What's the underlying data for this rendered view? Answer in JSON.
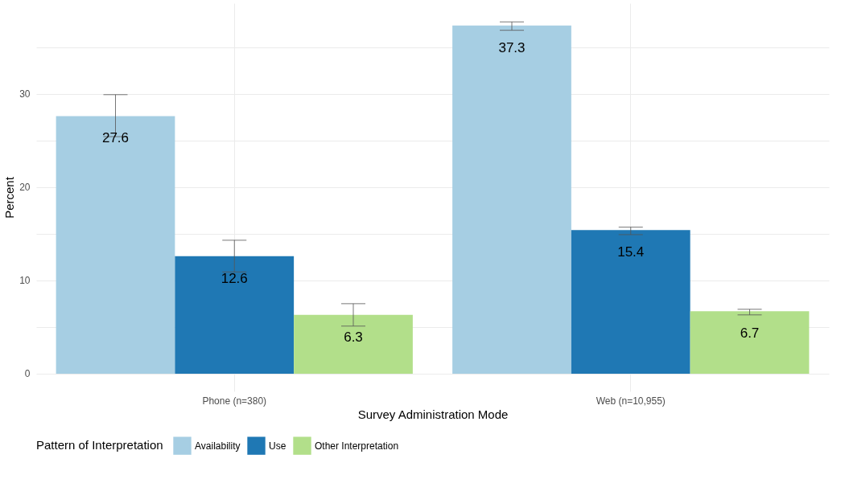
{
  "chart_data": {
    "type": "bar",
    "xlabel": "Survey Administration Mode",
    "ylabel": "Percent",
    "legend_title": "Pattern of Interpretation",
    "categories": [
      "Phone (n=380)",
      "Web (n=10,955)"
    ],
    "series": [
      {
        "name": "Availability",
        "color": "#a6cee3",
        "values": [
          27.6,
          37.3
        ],
        "errors": [
          [
            25.4,
            29.9
          ],
          [
            36.8,
            37.7
          ]
        ]
      },
      {
        "name": "Use",
        "color": "#1f78b4",
        "values": [
          12.6,
          15.4
        ],
        "errors": [
          [
            10.9,
            14.3
          ],
          [
            14.9,
            15.7
          ]
        ]
      },
      {
        "name": "Other Interpretation",
        "color": "#b2df8a",
        "values": [
          6.3,
          6.7
        ],
        "errors": [
          [
            5.1,
            7.5
          ],
          [
            6.3,
            6.9
          ]
        ]
      }
    ],
    "ylim": [
      -1.9,
      39.7
    ],
    "yticks": [
      0,
      {
        "value": 5,
        "label": null
      },
      10,
      {
        "value": 15,
        "label": null
      },
      20,
      {
        "value": 25,
        "label": null
      },
      30,
      {
        "value": 35,
        "label": null
      }
    ],
    "grid": true,
    "legend": "bottom",
    "data_labels": true
  }
}
